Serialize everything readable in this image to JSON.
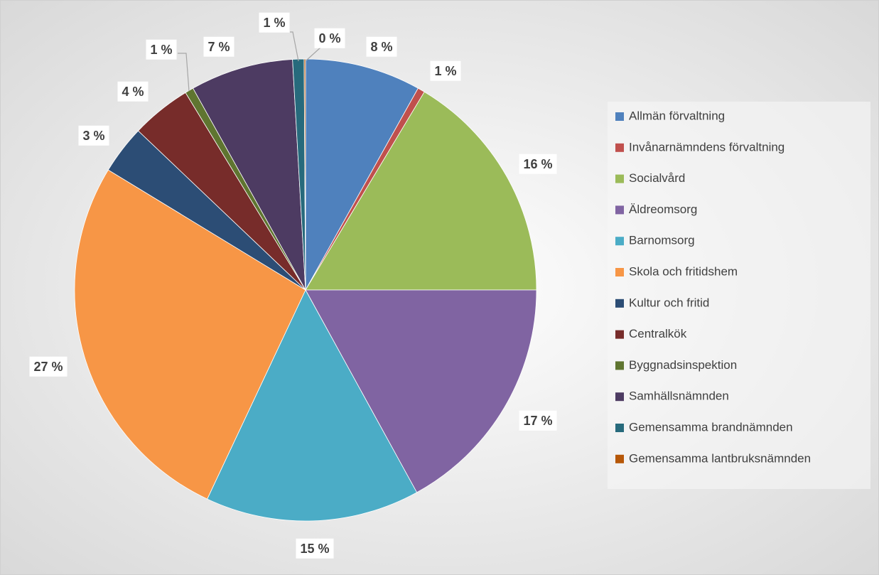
{
  "chart_data": {
    "type": "pie",
    "categories": [
      "Allmän förvaltning",
      "Invånarnämndens förvaltning",
      "Socialvård",
      "Äldreomsorg",
      "Barnomsorg",
      "Skola och fritidshem",
      "Kultur och fritid",
      "Centralkök",
      "Byggnadsinspektion",
      "Samhällsnämnden",
      "Gemensamma brandnämnden",
      "Gemensamma lantbruksnämnden"
    ],
    "values": [
      8.1,
      0.5,
      16.4,
      17.0,
      15.0,
      26.7,
      3.4,
      4.2,
      0.6,
      7.2,
      0.8,
      0.1
    ],
    "value_labels": [
      "8 %",
      "1 %",
      "16 %",
      "17 %",
      "15 %",
      "27 %",
      "3 %",
      "4 %",
      "1 %",
      "7 %",
      "1 %",
      "0 %"
    ],
    "colors": [
      "#4f81bd",
      "#c0504d",
      "#9bbb59",
      "#8064a2",
      "#4bacc6",
      "#f79646",
      "#2c4d75",
      "#772c2a",
      "#5f7530",
      "#4d3b62",
      "#276a7c",
      "#b65708"
    ],
    "legend": "right"
  }
}
